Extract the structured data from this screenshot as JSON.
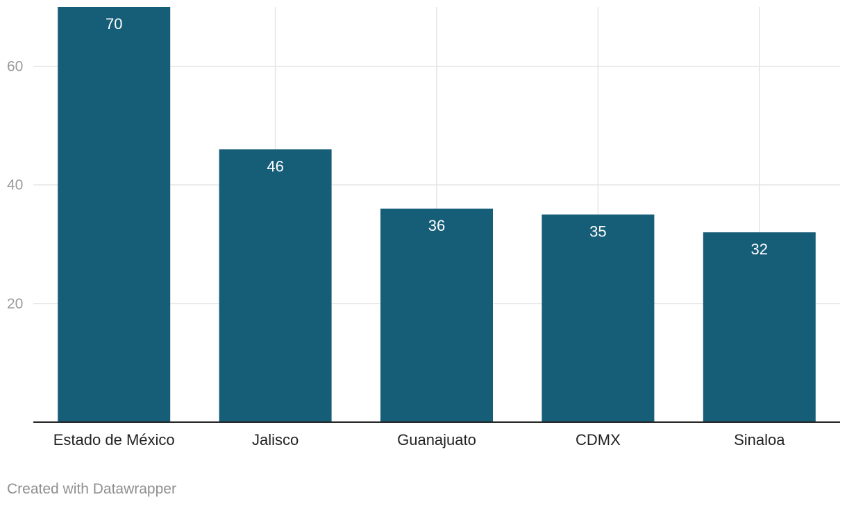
{
  "chart_data": {
    "type": "bar",
    "title": "",
    "xlabel": "",
    "ylabel": "",
    "categories": [
      "Estado de México",
      "Jalisco",
      "Guanajuato",
      "CDMX",
      "Sinaloa"
    ],
    "values": [
      70,
      46,
      36,
      35,
      32
    ],
    "ylim": [
      0,
      70
    ],
    "yticks": [
      20,
      40,
      60
    ],
    "grid": true,
    "data_labels": true,
    "bar_color": "#165e78",
    "grid_color": "#e4e4e4",
    "axis_color": "#222222",
    "tick_label_color": "#9a9a9a",
    "category_label_color": "#222222",
    "data_label_color": "#ffffff"
  },
  "footer": {
    "credit": "Created with Datawrapper"
  }
}
